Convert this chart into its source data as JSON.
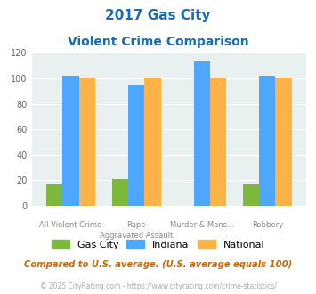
{
  "title_line1": "2017 Gas City",
  "title_line2": "Violent Crime Comparison",
  "cat_labels_top": [
    "",
    "Rape",
    "Murder & Mans...",
    ""
  ],
  "cat_labels_bot": [
    "All Violent Crime",
    "Aggravated Assault",
    "",
    "Robbery"
  ],
  "gas_city": [
    17,
    21,
    0,
    17
  ],
  "indiana": [
    102,
    95,
    113,
    102
  ],
  "national": [
    100,
    100,
    100,
    100
  ],
  "bar_colors": {
    "gas_city": "#7db93d",
    "indiana": "#4da6ff",
    "national": "#ffb347"
  },
  "ylim": [
    0,
    120
  ],
  "yticks": [
    0,
    20,
    40,
    60,
    80,
    100,
    120
  ],
  "bg_color": "#e8f0f0",
  "title_color": "#1a6bb5",
  "footer_note": "Compared to U.S. average. (U.S. average equals 100)",
  "footer_credit": "© 2025 CityRating.com - https://www.cityrating.com/crime-statistics/",
  "legend_labels": [
    "Gas City",
    "Indiana",
    "National"
  ],
  "bar_width": 0.25
}
